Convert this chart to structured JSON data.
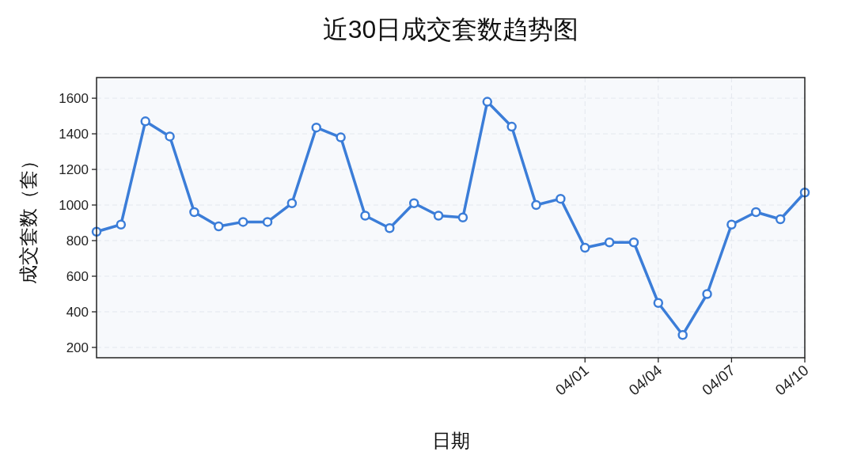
{
  "chart_data": {
    "type": "line",
    "title": "近30日成交套数趋势图",
    "xlabel": "日期",
    "ylabel": "成交套数（套）",
    "x": [
      "--03-12",
      "--03-13",
      "--03-14",
      "--03-15",
      "--03-16",
      "--03-17",
      "--03-18",
      "--03-19",
      "--03-20",
      "--03-21",
      "--03-22",
      "--03-23",
      "--03-24",
      "--03-25",
      "--03-26",
      "--03-27",
      "--03-28",
      "--03-29",
      "--03-30",
      "--03-31",
      "--04-01",
      "--04-02",
      "--04-03",
      "--04-04",
      "--04-05",
      "--04-06",
      "--04-07",
      "--04-08",
      "--04-09",
      "--04-10"
    ],
    "series": [
      {
        "color": "#3b7dd8",
        "values": [
          850,
          890,
          1470,
          1385,
          960,
          880,
          905,
          905,
          1010,
          1435,
          1380,
          940,
          870,
          1010,
          940,
          930,
          1580,
          1440,
          1000,
          1035,
          760,
          790,
          790,
          450,
          270,
          500,
          890,
          960,
          920,
          1070
        ]
      }
    ],
    "xlim": [
      "--03-12",
      "--04-10"
    ],
    "xticks": [
      {
        "value": "--04-01",
        "label": "04/01"
      },
      {
        "value": "--04-04",
        "label": "04/04"
      },
      {
        "value": "--04-07",
        "label": "04/07"
      },
      {
        "value": "--04-10",
        "label": "04/10"
      }
    ],
    "ylim": [
      142,
      1716
    ],
    "yticks": [
      200,
      400,
      600,
      800,
      1000,
      1200,
      1400,
      1600
    ],
    "grid": true,
    "marker": "circle",
    "line_style": "solid"
  }
}
